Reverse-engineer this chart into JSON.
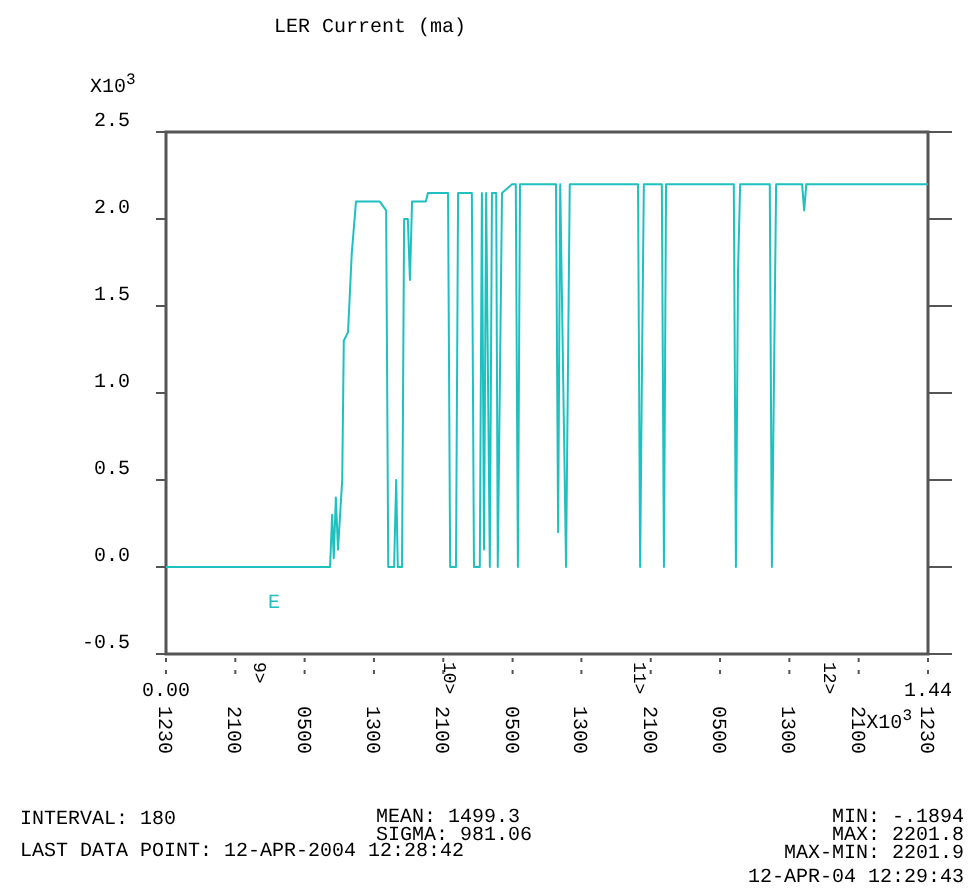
{
  "chart_data": {
    "type": "line",
    "title": "LER Current (ma)",
    "x": [
      0,
      0.31,
      0.314,
      0.317,
      0.321,
      0.325,
      0.333,
      0.336,
      0.344,
      0.351,
      0.359,
      0.404,
      0.416,
      0.42,
      0.431,
      0.435,
      0.438,
      0.446,
      0.45,
      0.457,
      0.461,
      0.465,
      0.491,
      0.495,
      0.533,
      0.537,
      0.548,
      0.552,
      0.578,
      0.582,
      0.593,
      0.597,
      0.601,
      0.605,
      0.612,
      0.616,
      0.624,
      0.627,
      0.635,
      0.654,
      0.661,
      0.665,
      0.669,
      0.737,
      0.741,
      0.745,
      0.756,
      0.763,
      0.892,
      0.896,
      0.9,
      0.903,
      0.937,
      0.941,
      0.945,
      1.073,
      1.077,
      1.081,
      1.085,
      1.141,
      1.145,
      1.149,
      1.153,
      1.202,
      1.206,
      1.21,
      1.44
    ],
    "series": [
      {
        "color": "#1fc0c0",
        "values": [
          0,
          0,
          0.3,
          0.05,
          0.4,
          0.1,
          0.5,
          1.3,
          1.35,
          1.8,
          2.1,
          2.1,
          2.05,
          0,
          0,
          0.5,
          0,
          0,
          2.0,
          2.0,
          1.65,
          2.1,
          2.1,
          2.15,
          2.15,
          0,
          0,
          2.15,
          2.15,
          0,
          0,
          2.15,
          0.1,
          2.15,
          0,
          2.15,
          2.15,
          0,
          2.15,
          2.2,
          2.2,
          0,
          2.2,
          2.2,
          0.2,
          2.2,
          0,
          2.2,
          2.2,
          0,
          1.3,
          2.2,
          2.2,
          0,
          2.2,
          2.2,
          0,
          1.7,
          2.2,
          2.2,
          0,
          1.1,
          2.2,
          2.2,
          2.05,
          2.2,
          2.2
        ]
      }
    ],
    "xlim": [
      0,
      1.44
    ],
    "xticks": [
      {
        "value": 0,
        "label": "0.00"
      },
      {
        "value": 0.131,
        "label": null
      },
      {
        "value": 0.262,
        "label": null
      },
      {
        "value": 0.393,
        "label": null
      },
      {
        "value": 0.524,
        "label": null
      },
      {
        "value": 0.655,
        "label": null
      },
      {
        "value": 0.785,
        "label": null
      },
      {
        "value": 0.916,
        "label": null
      },
      {
        "value": 1.047,
        "label": null
      },
      {
        "value": 1.178,
        "label": null
      },
      {
        "value": 1.309,
        "label": null
      },
      {
        "value": 1.44,
        "label": "1.44"
      }
    ],
    "ylim": [
      -0.5,
      2.5
    ],
    "yticks": [
      -0.5,
      {
        "value": 0,
        "label": "0.0"
      },
      0.5,
      {
        "value": 1,
        "label": "1.0"
      },
      1.5,
      {
        "value": 2,
        "label": "2.0"
      },
      2.5
    ],
    "grid": false,
    "annotations": [
      "X10$^{3}$",
      "X10$^{3}$",
      "E",
      "INTERVAL:  180",
      "MEAN: 1499.3",
      "SIGMA: 981.06",
      "LAST DATA POINT: 12-APR-2004 12:28:42",
      "MIN: -.1894",
      "MAX: 2201.8",
      "MAX-MIN: 2201.9",
      "12-APR-04 12:29:43",
      "9>",
      "10>",
      "11>",
      "12>",
      "1230",
      "2100",
      "0500",
      "1300",
      "2100",
      "0500",
      "1300",
      "2100",
      "0500",
      "1300",
      "2100",
      "1230"
    ]
  }
}
